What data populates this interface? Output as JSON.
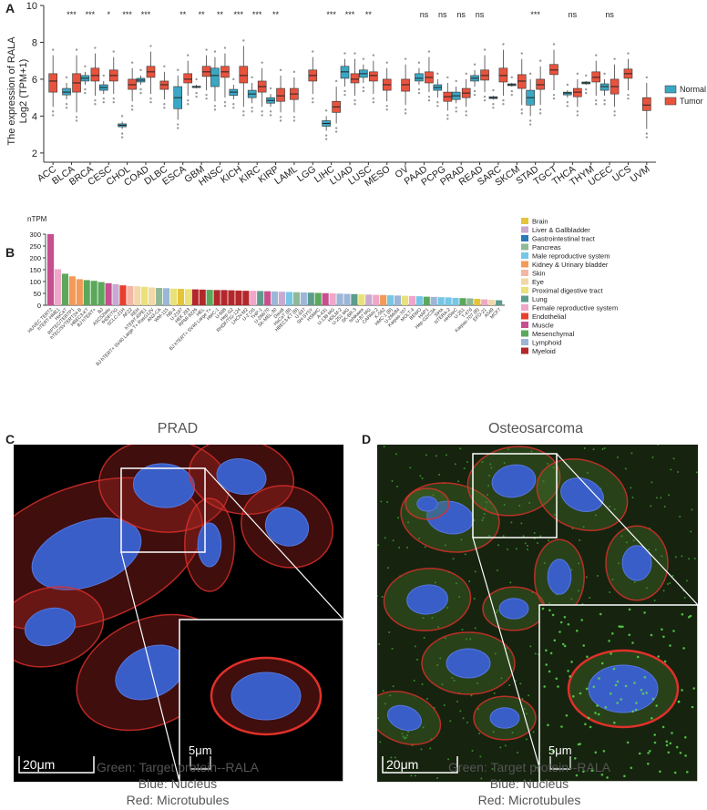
{
  "panels": {
    "a": "A",
    "b": "B",
    "c": "C",
    "d": "D"
  },
  "chart_data": [
    {
      "type": "box",
      "ylabel_line1": "The expression of RALA",
      "ylabel_line2": "Log2 (TPM+1)",
      "ylim": [
        1.5,
        10
      ],
      "yticks": [
        2,
        4,
        6,
        8,
        10
      ],
      "grid": false,
      "legend_position": "right",
      "series": [
        {
          "name": "Normal",
          "color": "#3aa7c4"
        },
        {
          "name": "Tumor",
          "color": "#e8533e"
        }
      ],
      "categories": [
        "ACC",
        "BLCA",
        "BRCA",
        "CESC",
        "CHOL",
        "COAD",
        "DLBC",
        "ESCA",
        "GBM",
        "HNSC",
        "KICH",
        "KIRC",
        "KIRP",
        "LAML",
        "LGG",
        "LIHC",
        "LUAD",
        "LUSC",
        "MESO",
        "OV",
        "PAAD",
        "PCPG",
        "PRAD",
        "READ",
        "SARC",
        "SKCM",
        "STAD",
        "TGCT",
        "THCA",
        "THYM",
        "UCEC",
        "UCS",
        "UVM"
      ],
      "significance": [
        "",
        "***",
        "***",
        "*",
        "***",
        "***",
        "",
        "**",
        "**",
        "**",
        "***",
        "***",
        "**",
        "",
        "",
        "***",
        "***",
        "**",
        "",
        "",
        "ns",
        "ns",
        "ns",
        "ns",
        "",
        "",
        "***",
        "",
        "ns",
        "",
        "ns",
        "",
        ""
      ],
      "normal": [
        null,
        [
          4.9,
          5.15,
          5.3,
          5.5,
          5.8
        ],
        [
          5.7,
          5.9,
          6.05,
          6.2,
          6.4
        ],
        [
          5.2,
          5.4,
          5.55,
          5.7,
          5.9
        ],
        [
          3.3,
          3.42,
          3.5,
          3.58,
          3.7
        ],
        [
          5.7,
          5.85,
          5.95,
          6.05,
          6.2
        ],
        null,
        [
          3.8,
          4.4,
          5.0,
          5.6,
          6.2
        ],
        [
          5.5,
          5.58,
          5.6,
          5.62,
          5.7
        ],
        [
          4.8,
          5.6,
          6.2,
          6.6,
          7.2
        ],
        [
          4.9,
          5.12,
          5.3,
          5.45,
          5.7
        ],
        [
          4.7,
          5.0,
          5.2,
          5.4,
          5.8
        ],
        [
          4.5,
          4.7,
          4.85,
          5.0,
          5.2
        ],
        null,
        null,
        [
          3.2,
          3.45,
          3.6,
          3.75,
          4.0
        ],
        [
          5.6,
          6.05,
          6.4,
          6.7,
          7.1
        ],
        [
          5.8,
          6.1,
          6.3,
          6.5,
          6.8
        ],
        null,
        null,
        [
          5.7,
          5.9,
          6.05,
          6.3,
          6.6
        ],
        [
          5.0,
          5.4,
          5.55,
          5.7,
          6.0
        ],
        [
          4.7,
          4.9,
          5.1,
          5.3,
          5.6
        ],
        [
          5.6,
          5.9,
          6.05,
          6.2,
          6.5
        ],
        [
          4.9,
          4.95,
          5.0,
          5.05,
          5.1
        ],
        [
          5.6,
          5.65,
          5.7,
          5.75,
          5.8
        ],
        [
          4.0,
          4.6,
          5.0,
          5.4,
          6.0
        ],
        null,
        [
          5.0,
          5.15,
          5.25,
          5.3,
          5.4
        ],
        [
          5.7,
          5.75,
          5.8,
          5.85,
          5.9
        ],
        [
          5.1,
          5.4,
          5.6,
          5.75,
          6.0
        ],
        null,
        null
      ],
      "tumor": [
        [
          4.5,
          5.3,
          5.9,
          6.3,
          7.3
        ],
        [
          4.2,
          5.3,
          5.8,
          6.3,
          7.3
        ],
        [
          5.1,
          5.9,
          6.2,
          6.6,
          7.4
        ],
        [
          5.2,
          5.9,
          6.2,
          6.5,
          7.2
        ],
        [
          4.8,
          5.45,
          5.7,
          6.0,
          6.6
        ],
        [
          5.2,
          6.1,
          6.4,
          6.7,
          7.5
        ],
        [
          4.9,
          5.45,
          5.7,
          5.9,
          6.4
        ],
        [
          5.1,
          5.8,
          6.0,
          6.3,
          7.0
        ],
        [
          5.4,
          6.15,
          6.4,
          6.7,
          7.3
        ],
        [
          5.0,
          6.1,
          6.4,
          6.7,
          7.4
        ],
        [
          4.5,
          5.8,
          6.2,
          6.7,
          7.8
        ],
        [
          4.5,
          5.3,
          5.6,
          5.9,
          6.6
        ],
        [
          4.2,
          4.8,
          5.1,
          5.5,
          6.2
        ],
        [
          4.2,
          4.9,
          5.2,
          5.5,
          6.1
        ],
        [
          5.2,
          5.9,
          6.2,
          6.5,
          7.2
        ],
        [
          3.6,
          4.2,
          4.5,
          4.8,
          5.6
        ],
        [
          5.1,
          5.8,
          6.0,
          6.3,
          7.1
        ],
        [
          5.2,
          5.9,
          6.2,
          6.4,
          7.0
        ],
        [
          4.8,
          5.4,
          5.7,
          6.0,
          6.6
        ],
        [
          4.6,
          5.35,
          5.7,
          6.0,
          6.8
        ],
        [
          5.3,
          5.8,
          6.1,
          6.4,
          7.2
        ],
        [
          4.3,
          4.8,
          5.05,
          5.3,
          5.8
        ],
        [
          4.5,
          5.0,
          5.25,
          5.5,
          6.0
        ],
        [
          5.3,
          5.95,
          6.2,
          6.5,
          7.3
        ],
        [
          5.1,
          5.85,
          6.2,
          6.6,
          7.6
        ],
        [
          4.6,
          5.5,
          5.9,
          6.25,
          7.1
        ],
        [
          4.6,
          5.45,
          5.7,
          6.0,
          6.7
        ],
        [
          5.4,
          6.25,
          6.5,
          6.8,
          7.6
        ],
        [
          4.5,
          5.05,
          5.3,
          5.5,
          6.0
        ],
        [
          5.1,
          5.85,
          6.1,
          6.4,
          7.0
        ],
        [
          4.5,
          5.2,
          5.6,
          6.0,
          6.8
        ],
        [
          5.4,
          6.05,
          6.3,
          6.55,
          7.1
        ],
        [
          3.3,
          4.3,
          4.6,
          5.0,
          5.8
        ]
      ]
    },
    {
      "type": "bar",
      "ylabel": "nTPM",
      "ylim": [
        0,
        300
      ],
      "yticks": [
        0,
        50,
        100,
        150,
        200,
        250,
        300
      ],
      "grid": false,
      "legend_position": "right",
      "legend": [
        {
          "name": "Brain",
          "color": "#e5c43a"
        },
        {
          "name": "Liver & Gallbladder",
          "color": "#c9a9d1"
        },
        {
          "name": "Gastrointestinal tract",
          "color": "#2a7ab8"
        },
        {
          "name": "Pancreas",
          "color": "#8fb996"
        },
        {
          "name": "Male reproductive system",
          "color": "#76c6e6"
        },
        {
          "name": "Kidney & Urinary bladder",
          "color": "#f29a58"
        },
        {
          "name": "Skin",
          "color": "#f5b7a5"
        },
        {
          "name": "Eye",
          "color": "#f2d8a8"
        },
        {
          "name": "Proximal digestive tract",
          "color": "#e9e27a"
        },
        {
          "name": "Lung",
          "color": "#5b9c8c"
        },
        {
          "name": "Female reproductive system",
          "color": "#f0a6c8"
        },
        {
          "name": "Endothelial",
          "color": "#e8402e"
        },
        {
          "name": "Muscle",
          "color": "#c74f8f"
        },
        {
          "name": "Mesenchymal",
          "color": "#5ba85b"
        },
        {
          "name": "Lymphoid",
          "color": "#9cb6d8"
        },
        {
          "name": "Myeloid",
          "color": "#b3272b"
        }
      ],
      "labels": [
        "HUVEC TERT2",
        "hTERT-HME1",
        "HaCaT",
        "RPTEC/TERTP1",
        "hTEC/SVTERT24-B",
        "HBEC3-KT",
        "BJ hTERT+",
        "BJ",
        "ASC52telo",
        "fHDF/TIG",
        "SCLC-21H",
        "AF22",
        "REH",
        "hTERT-RPE1",
        "BJ hTERT+ SV40 Large T+ RasG12V",
        "AN3-CA",
        "WM-115",
        "NB-4",
        "U-2197",
        "HEK 293",
        "RPMI-8226",
        "HEL",
        "BJ hTERT+ SV40 Large T+",
        "HMC-1",
        "U-698",
        "Hep G2",
        "RHDF/TIG-124",
        "LHCN-M2",
        "U-2 OS",
        "THP-1",
        "U-266/70",
        "SK-MEL-30",
        "Daudi",
        "HaCaT (B)",
        "HBEC3-KT (B)",
        "U-937",
        "SH-SY5Y",
        "HSkMC",
        "A-431",
        "U-138 MG",
        "HDLM-2",
        "U-251 MG",
        "SK-BR-3",
        "Ishikawa",
        "U-87 MG",
        "CAPAN-2",
        "K-562",
        "HMC-1 (B)",
        "U-266/84",
        "Karpas-707",
        "MOLT-4",
        "BEWO",
        "HAP1",
        "Hep-G2/C3A",
        "SiHa",
        "NTERA-2",
        "HHSteC",
        "U-251",
        "T-47d",
        "Karpas-707 (B)",
        "EFO-21",
        "A549",
        "MCF7"
      ],
      "values": [
        300,
        152,
        133,
        122,
        110,
        106,
        103,
        98,
        93,
        89,
        84,
        81,
        80,
        78,
        75,
        73,
        72,
        70,
        69,
        68,
        67,
        66,
        65,
        64,
        64,
        63,
        62,
        61,
        61,
        60,
        59,
        58,
        57,
        56,
        55,
        54,
        53,
        52,
        51,
        50,
        49,
        48,
        47,
        46,
        45,
        44,
        43,
        42,
        41,
        40,
        39,
        38,
        36,
        35,
        34,
        33,
        31,
        30,
        29,
        27,
        25,
        23,
        21
      ],
      "colors": [
        "#c74f8f",
        "#f0a6c8",
        "#5ba85b",
        "#f29a58",
        "#f29a58",
        "#5ba85b",
        "#5ba85b",
        "#5ba85b",
        "#c74f8f",
        "#c9a9d1",
        "#e8402e",
        "#f5b7a5",
        "#f2d8a8",
        "#e9e27a",
        "#f2d8a8",
        "#8fb996",
        "#9cb6d8",
        "#e9e27a",
        "#e5c43a",
        "#e9e27a",
        "#b3272b",
        "#b3272b",
        "#5ba85b",
        "#b3272b",
        "#b3272b",
        "#b3272b",
        "#b3272b",
        "#b3272b",
        "#f0a6c8",
        "#5b9c8c",
        "#c74f8f",
        "#9cb6d8",
        "#c9a9d1",
        "#76c6e6",
        "#8fb996",
        "#9cb6d8",
        "#5b9c8c",
        "#5ba85b",
        "#c74f8f",
        "#f0a6c8",
        "#9cb6d8",
        "#9cb6d8",
        "#5b9c8c",
        "#e9e27a",
        "#c9a9d1",
        "#f0a6c8",
        "#f29a58",
        "#76c6e6",
        "#9cb6d8",
        "#e9e27a",
        "#f0a6c8",
        "#76c6e6",
        "#5ba85b",
        "#9cb6d8",
        "#76c6e6",
        "#76c6e6",
        "#76c6e6",
        "#5ba85b",
        "#8fb996",
        "#e5c43a",
        "#f0a6c8",
        "#f2d8a8",
        "#5b9c8c"
      ]
    }
  ],
  "microscopy": {
    "left": {
      "title": "PRAD",
      "scale_main": "20μm",
      "scale_inset": "5μm",
      "cells": [
        [
          80,
          120,
          78,
          44,
          -20
        ],
        [
          165,
          45,
          42,
          30,
          5
        ],
        [
          250,
          35,
          34,
          24,
          10
        ],
        [
          215,
          110,
          16,
          30,
          0
        ],
        [
          150,
          250,
          50,
          34,
          -25
        ],
        [
          300,
          90,
          30,
          26,
          20
        ],
        [
          40,
          200,
          35,
          25,
          -15
        ]
      ]
    },
    "right": {
      "title": "Osteosarcoma",
      "scale_main": "20μm",
      "scale_inset": "5μm",
      "cells": [
        [
          80,
          80,
          32,
          22,
          10
        ],
        [
          150,
          40,
          30,
          22,
          -10
        ],
        [
          225,
          55,
          30,
          22,
          20
        ],
        [
          55,
          170,
          28,
          20,
          -5
        ],
        [
          100,
          240,
          30,
          20,
          0
        ],
        [
          150,
          180,
          20,
          14,
          0
        ],
        [
          200,
          145,
          16,
          24,
          0
        ],
        [
          140,
          300,
          20,
          14,
          0
        ],
        [
          30,
          300,
          24,
          16,
          20
        ],
        [
          285,
          130,
          20,
          24,
          0
        ],
        [
          55,
          65,
          14,
          10,
          0
        ]
      ]
    }
  },
  "captions": {
    "left": {
      "line1": "Green: Target protein--RALA",
      "line2": "Blue: Nucleus",
      "line3": "Red: Microtubules"
    },
    "right": {
      "line1": "Green: Target protein--RALA",
      "line2": "Blue: Nucleus",
      "line3": "Red: Microtubules"
    }
  }
}
